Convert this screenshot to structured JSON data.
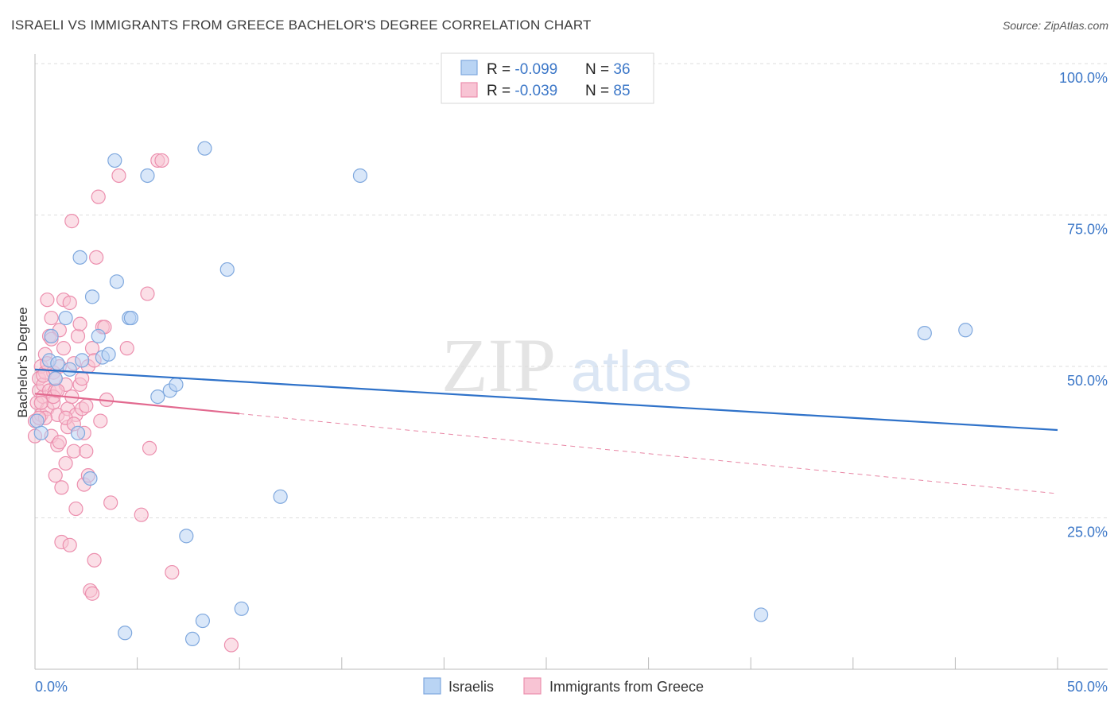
{
  "header": {
    "title": "ISRAELI VS IMMIGRANTS FROM GREECE BACHELOR'S DEGREE CORRELATION CHART",
    "source": "Source: ZipAtlas.com"
  },
  "watermark": {
    "zip": "ZIP",
    "atlas": "atlas"
  },
  "colors": {
    "israelis_fill": "#b9d4f4",
    "israelis_stroke": "#7fa8de",
    "israelis_line": "#2f72c9",
    "greece_fill": "#f8c4d4",
    "greece_stroke": "#ec8fae",
    "greece_line": "#e2698f",
    "axis_label": "#3d78c8",
    "grid": "#dddddd"
  },
  "stats": {
    "row1": {
      "r_label": "R = ",
      "r_value": "-0.099",
      "n_label": "N = ",
      "n_value": "36"
    },
    "row2": {
      "r_label": "R = ",
      "r_value": "-0.039",
      "n_label": "N = ",
      "n_value": "85"
    }
  },
  "legend": {
    "israelis": "Israelis",
    "greece": "Immigrants from Greece"
  },
  "chart_data": {
    "type": "scatter",
    "title": "ISRAELI VS IMMIGRANTS FROM GREECE BACHELOR'S DEGREE CORRELATION CHART",
    "xlabel": "",
    "ylabel": "Bachelor's Degree",
    "xlim": [
      0,
      50
    ],
    "ylim": [
      0,
      100
    ],
    "x_tick_labels": [
      "0.0%",
      "50.0%"
    ],
    "y_ticks": [
      25,
      50,
      75,
      100
    ],
    "y_tick_labels": [
      "25.0%",
      "50.0%",
      "75.0%",
      "100.0%"
    ],
    "grid": true,
    "legend_position": "bottom-center",
    "series": [
      {
        "name": "Israelis",
        "r": -0.099,
        "n": 36,
        "trend": {
          "x": [
            0,
            50
          ],
          "y": [
            49.5,
            39.5
          ]
        },
        "points": [
          [
            0.1,
            41
          ],
          [
            0.3,
            39
          ],
          [
            0.7,
            51
          ],
          [
            0.8,
            55
          ],
          [
            1.0,
            48
          ],
          [
            1.1,
            50.5
          ],
          [
            1.5,
            58
          ],
          [
            1.7,
            49.5
          ],
          [
            2.2,
            68
          ],
          [
            2.3,
            51
          ],
          [
            2.1,
            39
          ],
          [
            2.7,
            31.5
          ],
          [
            2.8,
            61.5
          ],
          [
            3.1,
            55
          ],
          [
            3.3,
            51.5
          ],
          [
            3.6,
            52
          ],
          [
            3.9,
            84
          ],
          [
            4.0,
            64
          ],
          [
            4.4,
            6
          ],
          [
            4.6,
            58
          ],
          [
            4.7,
            58
          ],
          [
            5.5,
            81.5
          ],
          [
            6.0,
            45
          ],
          [
            6.6,
            46
          ],
          [
            6.9,
            47
          ],
          [
            7.4,
            22
          ],
          [
            7.7,
            5
          ],
          [
            8.2,
            8
          ],
          [
            8.3,
            86
          ],
          [
            9.4,
            66
          ],
          [
            10.1,
            10
          ],
          [
            12.0,
            28.5
          ],
          [
            15.9,
            81.5
          ],
          [
            35.5,
            9
          ],
          [
            43.5,
            55.5
          ],
          [
            45.5,
            56
          ]
        ]
      },
      {
        "name": "Immigrants from Greece",
        "r": -0.039,
        "n": 85,
        "trend": {
          "x": [
            0,
            50
          ],
          "y": [
            45.5,
            29
          ]
        },
        "trend_solid_until_x": 10,
        "points": [
          [
            0.0,
            38.5
          ],
          [
            0.0,
            41
          ],
          [
            0.1,
            44
          ],
          [
            0.2,
            46
          ],
          [
            0.2,
            48
          ],
          [
            0.3,
            42
          ],
          [
            0.3,
            50
          ],
          [
            0.4,
            45
          ],
          [
            0.4,
            47
          ],
          [
            0.5,
            52
          ],
          [
            0.5,
            49
          ],
          [
            0.6,
            61
          ],
          [
            0.6,
            43
          ],
          [
            0.7,
            46
          ],
          [
            0.7,
            55
          ],
          [
            0.8,
            58
          ],
          [
            0.8,
            38.5
          ],
          [
            0.9,
            49
          ],
          [
            0.9,
            44
          ],
          [
            1.0,
            32
          ],
          [
            1.0,
            46
          ],
          [
            1.1,
            37
          ],
          [
            1.1,
            42
          ],
          [
            1.2,
            56
          ],
          [
            1.2,
            50
          ],
          [
            1.3,
            30
          ],
          [
            1.3,
            21
          ],
          [
            1.4,
            61
          ],
          [
            1.4,
            53
          ],
          [
            1.5,
            34
          ],
          [
            1.5,
            47
          ],
          [
            1.6,
            43
          ],
          [
            1.6,
            40
          ],
          [
            1.7,
            60.5
          ],
          [
            1.7,
            20.5
          ],
          [
            1.8,
            74
          ],
          [
            1.8,
            45
          ],
          [
            1.9,
            50.5
          ],
          [
            1.9,
            36
          ],
          [
            2.0,
            26.5
          ],
          [
            2.0,
            42
          ],
          [
            2.1,
            55
          ],
          [
            2.2,
            57
          ],
          [
            2.2,
            47
          ],
          [
            2.3,
            48
          ],
          [
            2.4,
            39
          ],
          [
            2.4,
            30.5
          ],
          [
            2.5,
            36
          ],
          [
            2.6,
            32
          ],
          [
            2.6,
            50
          ],
          [
            2.7,
            13
          ],
          [
            2.8,
            12.5
          ],
          [
            2.8,
            53
          ],
          [
            2.9,
            18
          ],
          [
            2.9,
            51
          ],
          [
            3.0,
            68
          ],
          [
            3.1,
            78
          ],
          [
            3.2,
            41
          ],
          [
            3.3,
            56.5
          ],
          [
            3.4,
            56.5
          ],
          [
            3.5,
            44.5
          ],
          [
            3.7,
            27.5
          ],
          [
            4.1,
            81.5
          ],
          [
            4.5,
            53
          ],
          [
            5.2,
            25.5
          ],
          [
            5.5,
            62
          ],
          [
            5.6,
            36.5
          ],
          [
            6.0,
            84
          ],
          [
            6.2,
            84
          ],
          [
            6.7,
            16
          ],
          [
            9.6,
            4
          ],
          [
            1.0,
            48
          ],
          [
            0.3,
            44
          ],
          [
            0.5,
            41.5
          ],
          [
            0.9,
            45
          ],
          [
            1.5,
            41.5
          ],
          [
            1.2,
            37.5
          ],
          [
            2.3,
            43
          ],
          [
            0.8,
            54.5
          ],
          [
            0.6,
            50.5
          ],
          [
            1.9,
            40.5
          ],
          [
            0.4,
            48.5
          ],
          [
            2.5,
            43.5
          ],
          [
            1.1,
            46
          ],
          [
            0.2,
            41.5
          ]
        ]
      }
    ]
  }
}
